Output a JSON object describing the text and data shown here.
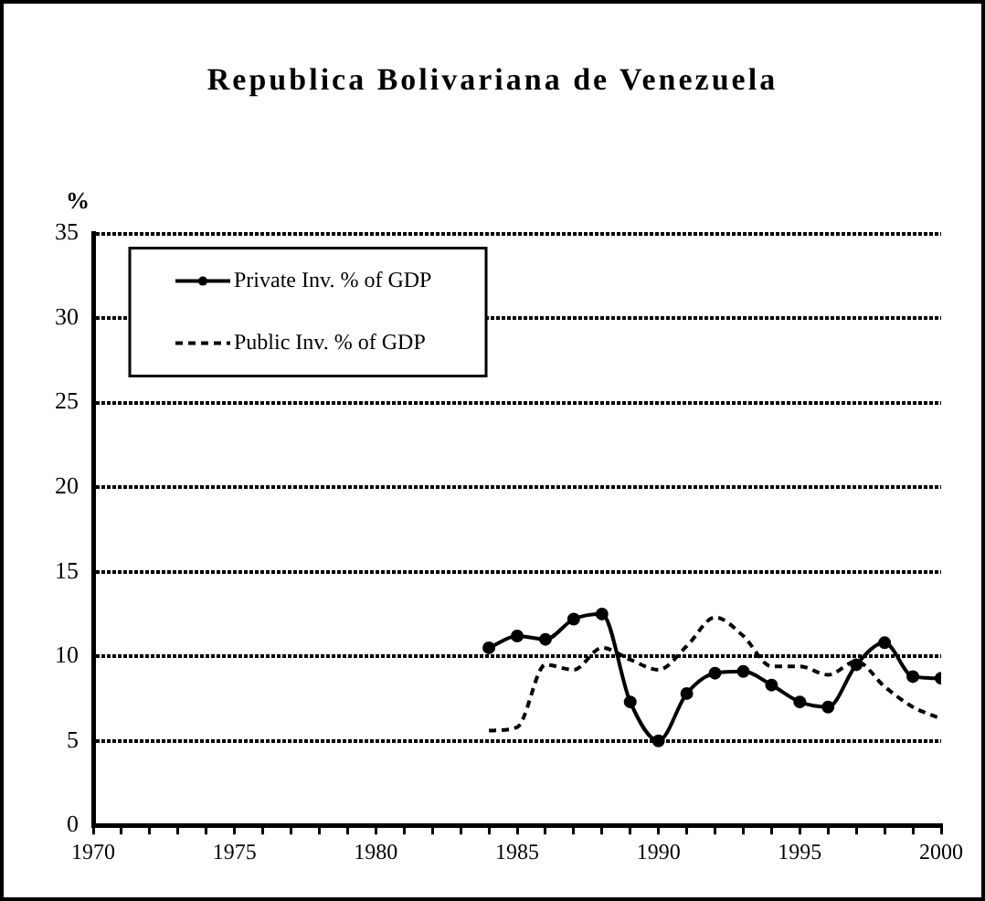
{
  "chart_data": {
    "type": "line",
    "title": "Republica Bolivariana de Venezuela",
    "ylabel": "%",
    "x": [
      1984,
      1985,
      1986,
      1987,
      1988,
      1989,
      1990,
      1991,
      1992,
      1993,
      1994,
      1995,
      1996,
      1997,
      1998,
      1999,
      2000
    ],
    "series": [
      {
        "name": "Private Inv. % of GDP",
        "color": "#000000",
        "marker": "circle",
        "line_style": "solid",
        "values": [
          10.5,
          11.2,
          11.0,
          12.2,
          12.5,
          7.3,
          5.0,
          7.8,
          9.0,
          9.1,
          8.3,
          7.3,
          7.0,
          9.5,
          10.8,
          8.8,
          8.7
        ]
      },
      {
        "name": "Public Inv. % of GDP",
        "color": "#000000",
        "marker": "none",
        "line_style": "dashed",
        "values": [
          5.6,
          5.8,
          9.5,
          9.2,
          10.5,
          9.8,
          9.2,
          10.6,
          12.3,
          11.2,
          9.4,
          9.4,
          8.9,
          9.7,
          8.2,
          7.0,
          6.3
        ]
      }
    ],
    "xlim": [
      1970,
      2000
    ],
    "xticks": [
      1970,
      {
        "value": 1971,
        "label": null
      },
      {
        "value": 1972,
        "label": null
      },
      {
        "value": 1973,
        "label": null
      },
      {
        "value": 1974,
        "label": null
      },
      1975,
      {
        "value": 1976,
        "label": null
      },
      {
        "value": 1977,
        "label": null
      },
      {
        "value": 1978,
        "label": null
      },
      {
        "value": 1979,
        "label": null
      },
      1980,
      {
        "value": 1981,
        "label": null
      },
      {
        "value": 1982,
        "label": null
      },
      {
        "value": 1983,
        "label": null
      },
      {
        "value": 1984,
        "label": null
      },
      1985,
      {
        "value": 1986,
        "label": null
      },
      {
        "value": 1987,
        "label": null
      },
      {
        "value": 1988,
        "label": null
      },
      {
        "value": 1989,
        "label": null
      },
      1990,
      {
        "value": 1991,
        "label": null
      },
      {
        "value": 1992,
        "label": null
      },
      {
        "value": 1993,
        "label": null
      },
      {
        "value": 1994,
        "label": null
      },
      1995,
      {
        "value": 1996,
        "label": null
      },
      {
        "value": 1997,
        "label": null
      },
      {
        "value": 1998,
        "label": null
      },
      {
        "value": 1999,
        "label": null
      },
      2000
    ],
    "ylim": [
      0,
      35
    ],
    "yticks": [
      0,
      5,
      10,
      15,
      20,
      25,
      30,
      35
    ],
    "grid": "y",
    "legend": "top left"
  }
}
